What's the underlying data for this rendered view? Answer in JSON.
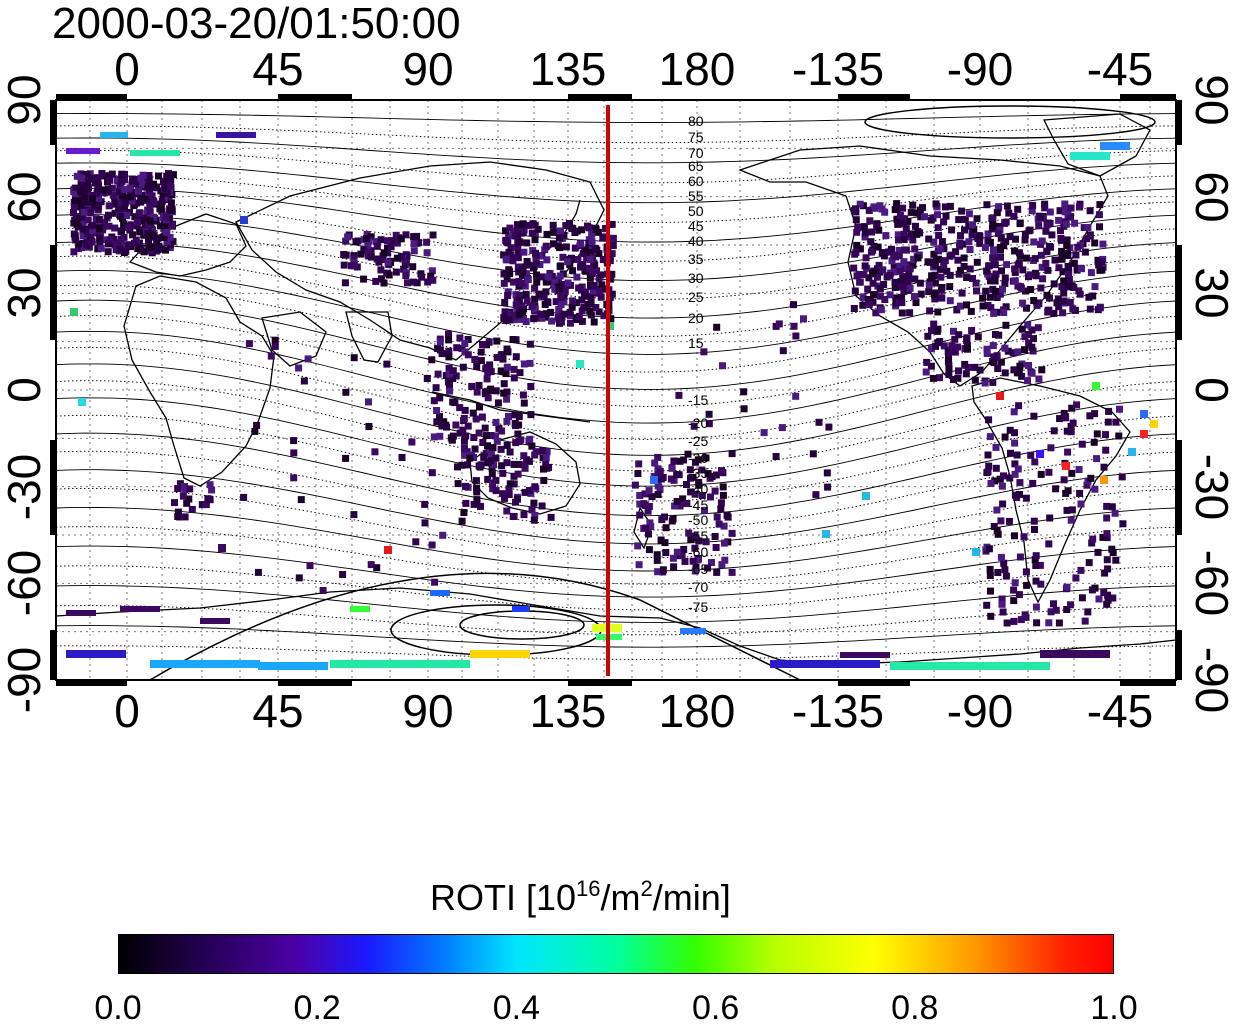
{
  "timestamp": "2000-03-20/01:50:00",
  "top_axis_labels": [
    "0",
    "45",
    "90",
    "135",
    "180",
    "-135",
    "-90",
    "-45"
  ],
  "bottom_axis_labels": [
    "0",
    "45",
    "90",
    "135",
    "180",
    "-135",
    "-90",
    "-45"
  ],
  "left_axis_labels": [
    "90",
    "60",
    "30",
    "0",
    "-30",
    "-60",
    "-90"
  ],
  "right_axis_labels": [
    "90",
    "60",
    "30",
    "0",
    "-30",
    "-60",
    "-90"
  ],
  "contour_labels_north": [
    "80",
    "75",
    "70",
    "65",
    "60",
    "55",
    "50",
    "45",
    "40",
    "35",
    "30",
    "25",
    "20",
    "15"
  ],
  "contour_labels_south": [
    "-15",
    "-20",
    "-25",
    "-30",
    "-35",
    "-40",
    "-45",
    "-50",
    "-55",
    "-60",
    "-65",
    "-70",
    "-75"
  ],
  "colorbar": {
    "title_main": "ROTI  [10",
    "title_sup1": "16",
    "title_mid": "/m",
    "title_sup2": "2",
    "title_end": "/min]",
    "ticks": [
      "0.0",
      "0.2",
      "0.4",
      "0.6",
      "0.8",
      "1.0"
    ]
  },
  "colors": {
    "terminator_line": "#cc0000"
  }
}
